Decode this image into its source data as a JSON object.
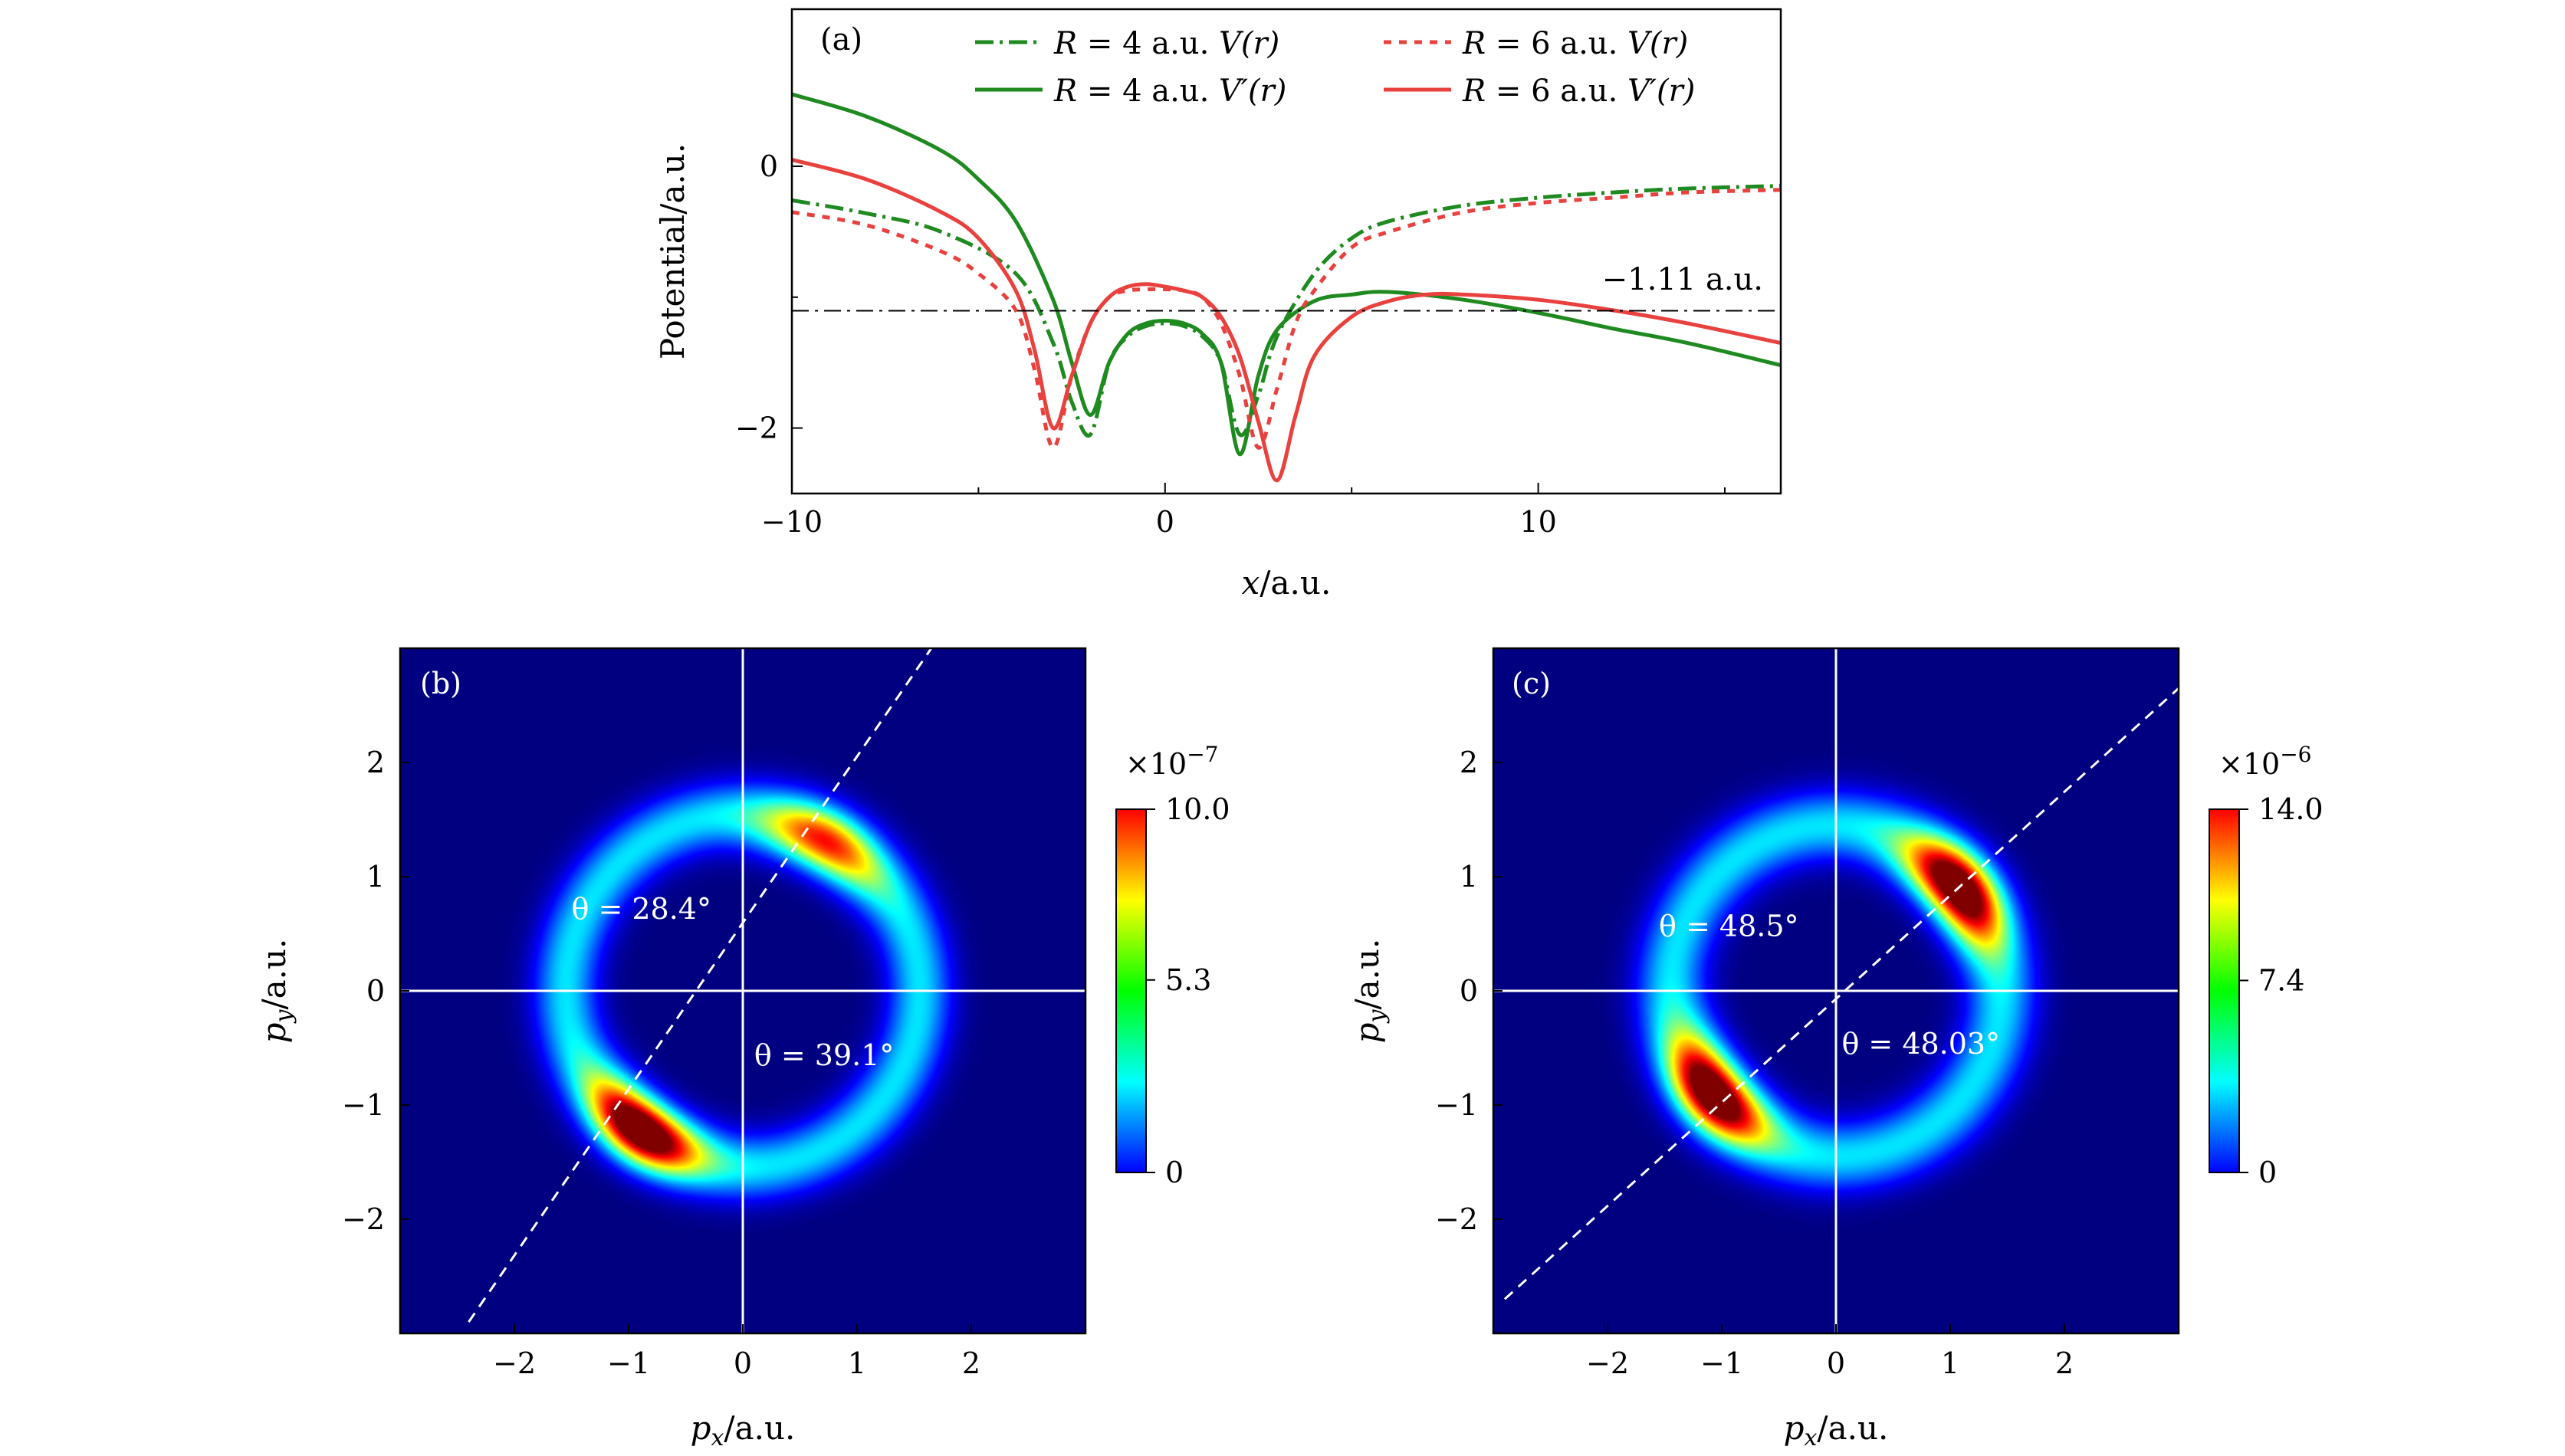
{
  "chart_data": [
    {
      "type": "line",
      "panel_label": "(a)",
      "xlabel_var": "x",
      "xlabel_unit": "/a.u.",
      "ylabel": "Potential/a.u.",
      "xlim": [
        -10,
        16.5
      ],
      "ylim": [
        -2.5,
        1.2
      ],
      "xticks": [
        -10,
        0,
        10
      ],
      "xtick_labels": [
        "−10",
        "0",
        "10"
      ],
      "yticks": [
        0,
        -2
      ],
      "ytick_labels": [
        "0",
        "−2"
      ],
      "reference_line": {
        "y": -1.11,
        "label": "−1.11 a.u."
      },
      "series": [
        {
          "name": "R = 4 a.u. V(r)",
          "eq_left": "R",
          "eq_right": "= 4 a.u.",
          "func": "V(r)",
          "color": "#1f8a1f",
          "style": "dashdot",
          "x": [
            -10,
            -8,
            -6,
            -4,
            -3,
            -2.5,
            -2,
            -1.5,
            -1,
            -0.5,
            0,
            0.5,
            1,
            1.5,
            2,
            2.5,
            3,
            4,
            5,
            6,
            8,
            10,
            12,
            14,
            16.5
          ],
          "y": [
            -0.26,
            -0.36,
            -0.5,
            -0.82,
            -1.35,
            -1.8,
            -2.05,
            -1.5,
            -1.3,
            -1.22,
            -1.2,
            -1.22,
            -1.3,
            -1.5,
            -2.05,
            -1.75,
            -1.3,
            -0.82,
            -0.55,
            -0.42,
            -0.3,
            -0.24,
            -0.2,
            -0.17,
            -0.15
          ]
        },
        {
          "name": "R = 4 a.u. V′(r)",
          "eq_left": "R",
          "eq_right": "= 4 a.u.",
          "func": "V′(r)",
          "color": "#1f8a1f",
          "style": "solid",
          "x": [
            -10,
            -8,
            -6,
            -5,
            -4,
            -3,
            -2.5,
            -2,
            -1.5,
            -1,
            -0.5,
            0,
            0.5,
            1,
            1.5,
            2,
            2.5,
            3,
            4,
            5,
            6,
            8,
            10,
            12,
            14,
            16.5
          ],
          "y": [
            0.55,
            0.38,
            0.12,
            -0.1,
            -0.42,
            -1.02,
            -1.5,
            -1.9,
            -1.5,
            -1.28,
            -1.2,
            -1.18,
            -1.2,
            -1.28,
            -1.5,
            -2.2,
            -1.6,
            -1.25,
            -1.03,
            -0.98,
            -0.96,
            -1.02,
            -1.12,
            -1.24,
            -1.35,
            -1.52
          ]
        },
        {
          "name": "R = 6 a.u. V(r)",
          "eq_left": "R",
          "eq_right": "= 6 a.u.",
          "func": "V(r)",
          "color": "#e8413e",
          "style": "dotted",
          "x": [
            -10,
            -8,
            -6,
            -5,
            -4,
            -3.5,
            -3,
            -2.5,
            -2,
            -1.5,
            -1,
            -0.5,
            0,
            0.5,
            1,
            1.5,
            2,
            2.5,
            3,
            3.5,
            4,
            5,
            6,
            8,
            10,
            12,
            14,
            16.5
          ],
          "y": [
            -0.35,
            -0.45,
            -0.65,
            -0.82,
            -1.1,
            -1.55,
            -2.15,
            -1.6,
            -1.2,
            -1.0,
            -0.95,
            -0.94,
            -0.94,
            -0.95,
            -1.0,
            -1.2,
            -1.6,
            -2.15,
            -1.7,
            -1.2,
            -0.95,
            -0.62,
            -0.5,
            -0.35,
            -0.28,
            -0.24,
            -0.2,
            -0.18
          ]
        },
        {
          "name": "R = 6 a.u. V′(r)",
          "eq_left": "R",
          "eq_right": "= 6 a.u.",
          "func": "V′(r)",
          "color": "#e8413e",
          "style": "solid",
          "x": [
            -10,
            -8,
            -6,
            -5,
            -4,
            -3.5,
            -3,
            -2.5,
            -2,
            -1.5,
            -1,
            -0.5,
            0,
            0.5,
            1,
            1.5,
            2,
            2.5,
            3,
            3.5,
            4,
            5,
            6,
            7,
            8,
            10,
            12,
            14,
            16.5
          ],
          "y": [
            0.05,
            -0.1,
            -0.35,
            -0.55,
            -0.95,
            -1.4,
            -2.0,
            -1.6,
            -1.2,
            -1.0,
            -0.92,
            -0.9,
            -0.92,
            -0.95,
            -1.0,
            -1.15,
            -1.45,
            -1.95,
            -2.4,
            -1.9,
            -1.45,
            -1.15,
            -1.03,
            -0.98,
            -0.98,
            -1.02,
            -1.1,
            -1.2,
            -1.35
          ]
        }
      ]
    },
    {
      "type": "heatmap",
      "panel_label": "(b)",
      "xlabel_var": "p",
      "xlabel_sub": "x",
      "xlabel_unit": "/a.u.",
      "ylabel_var": "p",
      "ylabel_sub": "y",
      "ylabel_unit": "/a.u.",
      "xlim": [
        -3,
        3
      ],
      "ylim": [
        -3,
        3
      ],
      "xticks": [
        -2,
        -1,
        0,
        1,
        2
      ],
      "xtick_labels": [
        "−2",
        "−1",
        "0",
        "1",
        "2"
      ],
      "yticks": [
        2,
        1,
        0,
        -1,
        -2
      ],
      "ytick_labels": [
        "2",
        "1",
        "0",
        "−1",
        "−2"
      ],
      "colorbar": {
        "exponent_label": "×10",
        "exponent": "−7",
        "max": 10.0,
        "ticks": [
          10.0,
          5.3,
          0
        ],
        "tick_labels": [
          "10.0",
          "5.3",
          "0"
        ]
      },
      "ring": {
        "radius": 1.55,
        "width": 0.28
      },
      "lobes": [
        {
          "px": 0.6,
          "py": 1.1,
          "amp": 0.7
        },
        {
          "px": -0.8,
          "py": -1.1,
          "amp": 1.0
        }
      ],
      "dashed_line": {
        "x1": -2.4,
        "y1": -2.9,
        "x2": 1.65,
        "y2": 3.0
      },
      "annotations": [
        {
          "text": "θ = 28.4°",
          "x": -1.5,
          "y": 0.63
        },
        {
          "text": "θ = 39.1°",
          "x": 0.1,
          "y": -0.65
        }
      ]
    },
    {
      "type": "heatmap",
      "panel_label": "(c)",
      "xlabel_var": "p",
      "xlabel_sub": "x",
      "xlabel_unit": "/a.u.",
      "ylabel_var": "p",
      "ylabel_sub": "y",
      "ylabel_unit": "/a.u.",
      "xlim": [
        -3,
        3
      ],
      "ylim": [
        -3,
        3
      ],
      "xticks": [
        -2,
        -1,
        0,
        1,
        2
      ],
      "xtick_labels": [
        "−2",
        "−1",
        "0",
        "1",
        "2"
      ],
      "yticks": [
        2,
        1,
        0,
        -1,
        -2
      ],
      "ytick_labels": [
        "2",
        "1",
        "0",
        "−1",
        "−2"
      ],
      "colorbar": {
        "exponent_label": "×10",
        "exponent": "−6",
        "max": 14.0,
        "ticks": [
          14.0,
          7.4,
          0
        ],
        "tick_labels": [
          "14.0",
          "7.4",
          "0"
        ]
      },
      "ring": {
        "radius": 1.45,
        "width": 0.3
      },
      "lobes": [
        {
          "px": 0.95,
          "py": 0.8,
          "amp": 1.0
        },
        {
          "px": -0.95,
          "py": -0.8,
          "amp": 1.0
        }
      ],
      "dashed_line": {
        "x1": -2.9,
        "y1": -2.7,
        "x2": 3.0,
        "y2": 2.65
      },
      "annotations": [
        {
          "text": "θ = 48.5°",
          "x": -1.55,
          "y": 0.48
        },
        {
          "text": "θ = 48.03°",
          "x": 0.05,
          "y": -0.55
        }
      ]
    }
  ]
}
